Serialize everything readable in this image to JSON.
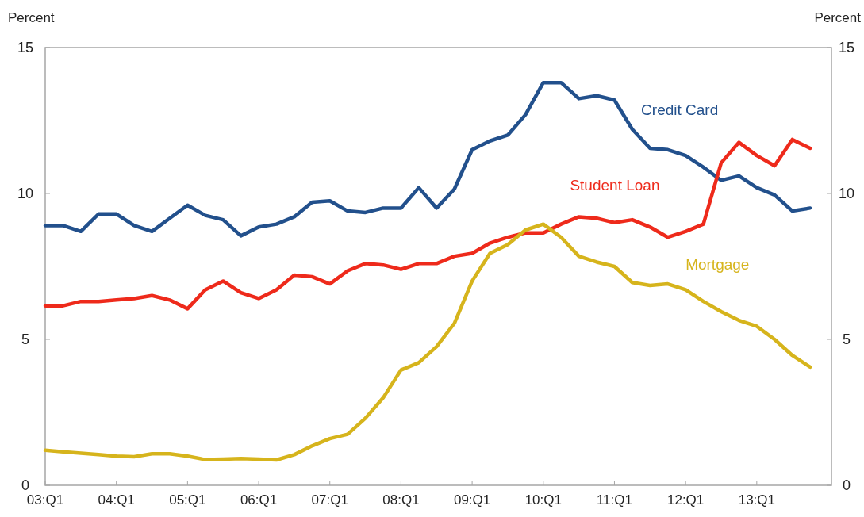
{
  "chart_data": {
    "type": "line",
    "ylabel": "Percent",
    "y2label": "Percent",
    "categories": [
      "03:Q1",
      null,
      null,
      null,
      "04:Q1",
      null,
      null,
      null,
      "05:Q1",
      null,
      null,
      null,
      "06:Q1",
      null,
      null,
      null,
      "07:Q1",
      null,
      null,
      null,
      "08:Q1",
      null,
      null,
      null,
      "09:Q1",
      null,
      null,
      null,
      "10:Q1",
      null,
      null,
      null,
      "11:Q1",
      null,
      null,
      null,
      "12:Q1",
      null,
      null,
      null,
      "13:Q1",
      null,
      null,
      null
    ],
    "series": [
      {
        "name": "Credit Card",
        "color": "#22508c",
        "values": [
          8.9,
          8.9,
          8.7,
          9.3,
          9.3,
          8.9,
          8.7,
          9.15,
          9.6,
          9.25,
          9.1,
          8.55,
          8.85,
          8.95,
          9.2,
          9.7,
          9.75,
          9.4,
          9.35,
          9.5,
          9.5,
          10.2,
          9.5,
          10.15,
          11.5,
          11.8,
          12.0,
          12.7,
          13.8,
          13.8,
          13.25,
          13.35,
          13.2,
          12.2,
          11.55,
          11.5,
          11.3,
          10.9,
          10.45,
          10.6,
          10.2,
          9.95,
          9.4,
          9.5
        ]
      },
      {
        "name": "Student Loan",
        "color": "#ee2a1b",
        "values": [
          6.15,
          6.15,
          6.3,
          6.3,
          6.35,
          6.4,
          6.5,
          6.35,
          6.05,
          6.7,
          7.0,
          6.6,
          6.4,
          6.7,
          7.2,
          7.15,
          6.9,
          7.35,
          7.6,
          7.55,
          7.4,
          7.6,
          7.6,
          7.85,
          7.95,
          8.3,
          8.5,
          8.65,
          8.65,
          8.95,
          9.2,
          9.15,
          9.0,
          9.1,
          8.85,
          8.5,
          8.7,
          8.95,
          11.05,
          11.75,
          11.3,
          10.95,
          11.85,
          11.55
        ]
      },
      {
        "name": "Mortgage",
        "color": "#d6b41c",
        "values": [
          1.2,
          1.15,
          1.1,
          1.05,
          1.0,
          0.98,
          1.08,
          1.08,
          1.0,
          0.88,
          0.9,
          0.92,
          0.9,
          0.87,
          1.05,
          1.35,
          1.6,
          1.75,
          2.3,
          3.0,
          3.95,
          4.2,
          4.75,
          5.55,
          7.0,
          7.95,
          8.25,
          8.75,
          8.95,
          8.5,
          7.85,
          7.65,
          7.5,
          6.95,
          6.85,
          6.9,
          6.7,
          6.3,
          5.95,
          5.65,
          5.45,
          5.0,
          4.45,
          4.05
        ]
      }
    ],
    "ylim": [
      0,
      15
    ],
    "yticks": [
      0,
      5,
      10,
      15
    ],
    "y2lim": [
      0,
      15
    ],
    "y2ticks": [
      0,
      5,
      10,
      15
    ],
    "grid": false,
    "marker": "none",
    "line_style": "solid"
  }
}
